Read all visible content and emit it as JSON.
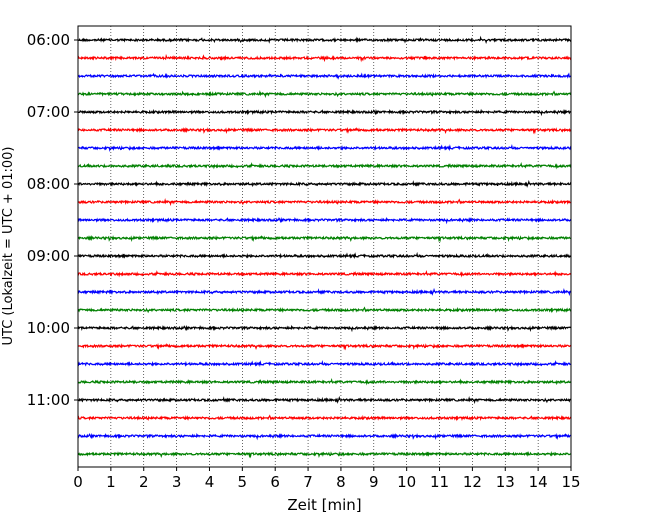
{
  "chart_data": {
    "type": "line",
    "title": "",
    "xlabel": "Zeit  [min]",
    "ylabel": "UTC (Lokalzeit = UTC + 01:00)",
    "xlim": [
      0,
      15
    ],
    "x_ticks": [
      0,
      1,
      2,
      3,
      4,
      5,
      6,
      7,
      8,
      9,
      10,
      11,
      12,
      13,
      14,
      15
    ],
    "x_tick_labels": [
      "0",
      "1",
      "2",
      "3",
      "4",
      "5",
      "6",
      "7",
      "8",
      "9",
      "10",
      "11",
      "12",
      "13",
      "14",
      "15"
    ],
    "y_tick_labels": [
      "06:00",
      "07:00",
      "08:00",
      "09:00",
      "10:00",
      "11:00"
    ],
    "grid": "vertical dotted lines at each minute",
    "colors": [
      "#000000",
      "#ff0000",
      "#0000ff",
      "#008000"
    ],
    "series": [
      {
        "start": "06:00",
        "color": "#000000"
      },
      {
        "start": "06:15",
        "color": "#ff0000"
      },
      {
        "start": "06:30",
        "color": "#0000ff"
      },
      {
        "start": "06:45",
        "color": "#008000"
      },
      {
        "start": "07:00",
        "color": "#000000"
      },
      {
        "start": "07:15",
        "color": "#ff0000"
      },
      {
        "start": "07:30",
        "color": "#0000ff"
      },
      {
        "start": "07:45",
        "color": "#008000"
      },
      {
        "start": "08:00",
        "color": "#000000"
      },
      {
        "start": "08:15",
        "color": "#ff0000"
      },
      {
        "start": "08:30",
        "color": "#0000ff"
      },
      {
        "start": "08:45",
        "color": "#008000"
      },
      {
        "start": "09:00",
        "color": "#000000"
      },
      {
        "start": "09:15",
        "color": "#ff0000"
      },
      {
        "start": "09:30",
        "color": "#0000ff"
      },
      {
        "start": "09:45",
        "color": "#008000"
      },
      {
        "start": "10:00",
        "color": "#000000"
      },
      {
        "start": "10:15",
        "color": "#ff0000"
      },
      {
        "start": "10:30",
        "color": "#0000ff"
      },
      {
        "start": "10:45",
        "color": "#008000"
      },
      {
        "start": "11:00",
        "color": "#000000"
      },
      {
        "start": "11:15",
        "color": "#ff0000"
      },
      {
        "start": "11:30",
        "color": "#0000ff"
      },
      {
        "start": "11:45",
        "color": "#008000"
      }
    ]
  }
}
